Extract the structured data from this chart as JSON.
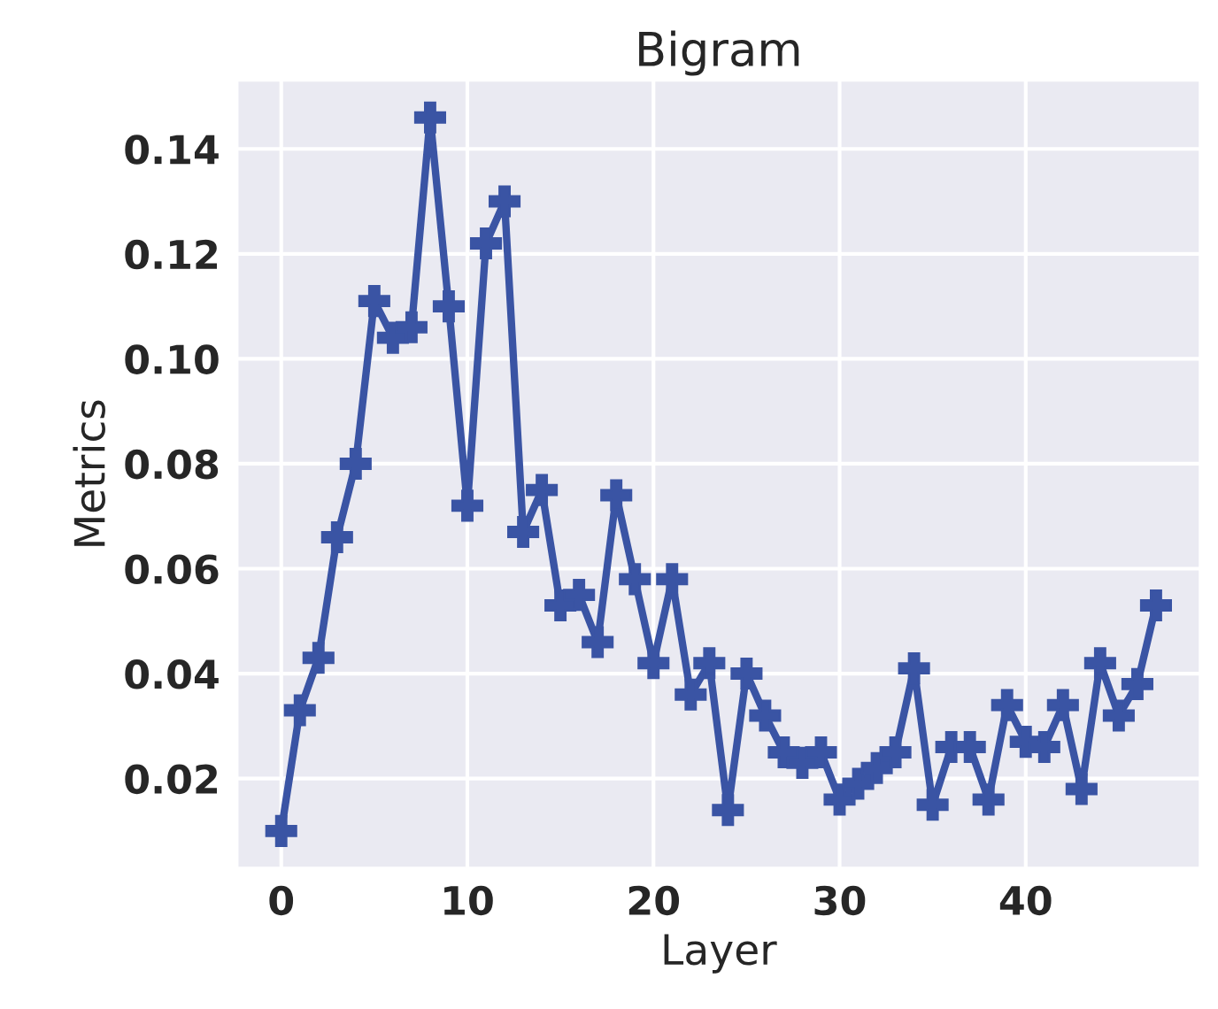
{
  "chart_data": {
    "type": "line",
    "title": "Bigram",
    "xlabel": "Layer",
    "ylabel": "Metrics",
    "x": [
      0,
      1,
      2,
      3,
      4,
      5,
      6,
      7,
      8,
      9,
      10,
      11,
      12,
      13,
      14,
      15,
      16,
      17,
      18,
      19,
      20,
      21,
      22,
      23,
      24,
      25,
      26,
      27,
      28,
      29,
      30,
      31,
      32,
      33,
      34,
      35,
      36,
      37,
      38,
      39,
      40,
      41,
      42,
      43,
      44,
      45,
      46,
      47
    ],
    "series": [
      {
        "color": "#3a54a4",
        "values": [
          0.01,
          0.033,
          0.043,
          0.066,
          0.08,
          0.111,
          0.104,
          0.106,
          0.146,
          0.11,
          0.072,
          0.122,
          0.13,
          0.067,
          0.075,
          0.053,
          0.055,
          0.046,
          0.074,
          0.058,
          0.042,
          0.058,
          0.036,
          0.042,
          0.014,
          0.04,
          0.032,
          0.025,
          0.023,
          0.025,
          0.016,
          0.019,
          0.022,
          0.025,
          0.041,
          0.015,
          0.026,
          0.026,
          0.016,
          0.034,
          0.027,
          0.026,
          0.034,
          0.018,
          0.042,
          0.032,
          0.038,
          0.053
        ]
      }
    ],
    "xlim": [
      -2.35,
      49.35
    ],
    "ylim": [
      0.003,
      0.153
    ],
    "xticks": [
      0,
      10,
      20,
      30,
      40
    ],
    "yticks": [
      {
        "value": 0.02,
        "label": "0.02"
      },
      {
        "value": 0.04,
        "label": "0.04"
      },
      {
        "value": 0.06,
        "label": "0.06"
      },
      {
        "value": 0.08,
        "label": "0.08"
      },
      {
        "value": 0.1,
        "label": "0.10"
      },
      {
        "value": 0.12,
        "label": "0.12"
      },
      {
        "value": 0.14,
        "label": "0.14"
      }
    ],
    "grid": true,
    "marker": "cross",
    "line_style": "solid"
  }
}
